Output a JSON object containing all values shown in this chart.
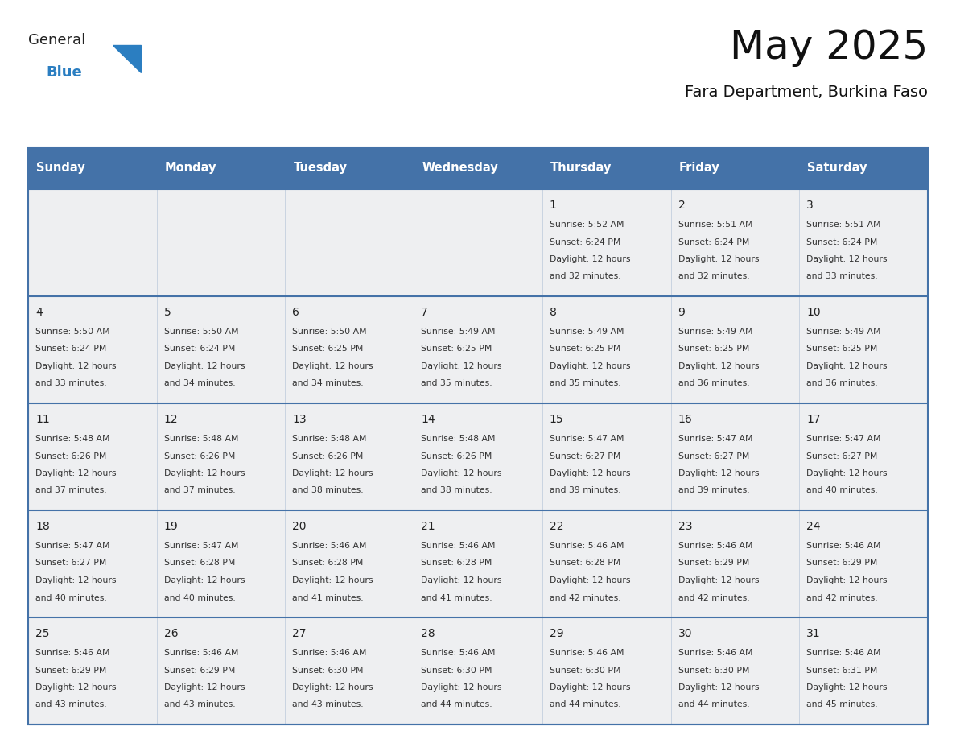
{
  "title": "May 2025",
  "subtitle": "Fara Department, Burkina Faso",
  "days_of_week": [
    "Sunday",
    "Monday",
    "Tuesday",
    "Wednesday",
    "Thursday",
    "Friday",
    "Saturday"
  ],
  "header_bg_color": "#4472a8",
  "header_text_color": "#ffffff",
  "cell_bg_color": "#eeeff1",
  "cell_bg_white": "#ffffff",
  "cell_border_color": "#4472a8",
  "row_divider_color": "#4472a8",
  "day_number_color": "#222222",
  "text_color": "#333333",
  "title_color": "#111111",
  "subtitle_color": "#111111",
  "logo_general_color": "#222222",
  "logo_blue_color": "#2b7ec1",
  "calendar": [
    [
      null,
      null,
      null,
      null,
      {
        "day": 1,
        "sunrise": "5:52 AM",
        "sunset": "6:24 PM",
        "daylight_hours": "12 hours",
        "daylight_min": "and 32 minutes."
      },
      {
        "day": 2,
        "sunrise": "5:51 AM",
        "sunset": "6:24 PM",
        "daylight_hours": "12 hours",
        "daylight_min": "and 32 minutes."
      },
      {
        "day": 3,
        "sunrise": "5:51 AM",
        "sunset": "6:24 PM",
        "daylight_hours": "12 hours",
        "daylight_min": "and 33 minutes."
      }
    ],
    [
      {
        "day": 4,
        "sunrise": "5:50 AM",
        "sunset": "6:24 PM",
        "daylight_hours": "12 hours",
        "daylight_min": "and 33 minutes."
      },
      {
        "day": 5,
        "sunrise": "5:50 AM",
        "sunset": "6:24 PM",
        "daylight_hours": "12 hours",
        "daylight_min": "and 34 minutes."
      },
      {
        "day": 6,
        "sunrise": "5:50 AM",
        "sunset": "6:25 PM",
        "daylight_hours": "12 hours",
        "daylight_min": "and 34 minutes."
      },
      {
        "day": 7,
        "sunrise": "5:49 AM",
        "sunset": "6:25 PM",
        "daylight_hours": "12 hours",
        "daylight_min": "and 35 minutes."
      },
      {
        "day": 8,
        "sunrise": "5:49 AM",
        "sunset": "6:25 PM",
        "daylight_hours": "12 hours",
        "daylight_min": "and 35 minutes."
      },
      {
        "day": 9,
        "sunrise": "5:49 AM",
        "sunset": "6:25 PM",
        "daylight_hours": "12 hours",
        "daylight_min": "and 36 minutes."
      },
      {
        "day": 10,
        "sunrise": "5:49 AM",
        "sunset": "6:25 PM",
        "daylight_hours": "12 hours",
        "daylight_min": "and 36 minutes."
      }
    ],
    [
      {
        "day": 11,
        "sunrise": "5:48 AM",
        "sunset": "6:26 PM",
        "daylight_hours": "12 hours",
        "daylight_min": "and 37 minutes."
      },
      {
        "day": 12,
        "sunrise": "5:48 AM",
        "sunset": "6:26 PM",
        "daylight_hours": "12 hours",
        "daylight_min": "and 37 minutes."
      },
      {
        "day": 13,
        "sunrise": "5:48 AM",
        "sunset": "6:26 PM",
        "daylight_hours": "12 hours",
        "daylight_min": "and 38 minutes."
      },
      {
        "day": 14,
        "sunrise": "5:48 AM",
        "sunset": "6:26 PM",
        "daylight_hours": "12 hours",
        "daylight_min": "and 38 minutes."
      },
      {
        "day": 15,
        "sunrise": "5:47 AM",
        "sunset": "6:27 PM",
        "daylight_hours": "12 hours",
        "daylight_min": "and 39 minutes."
      },
      {
        "day": 16,
        "sunrise": "5:47 AM",
        "sunset": "6:27 PM",
        "daylight_hours": "12 hours",
        "daylight_min": "and 39 minutes."
      },
      {
        "day": 17,
        "sunrise": "5:47 AM",
        "sunset": "6:27 PM",
        "daylight_hours": "12 hours",
        "daylight_min": "and 40 minutes."
      }
    ],
    [
      {
        "day": 18,
        "sunrise": "5:47 AM",
        "sunset": "6:27 PM",
        "daylight_hours": "12 hours",
        "daylight_min": "and 40 minutes."
      },
      {
        "day": 19,
        "sunrise": "5:47 AM",
        "sunset": "6:28 PM",
        "daylight_hours": "12 hours",
        "daylight_min": "and 40 minutes."
      },
      {
        "day": 20,
        "sunrise": "5:46 AM",
        "sunset": "6:28 PM",
        "daylight_hours": "12 hours",
        "daylight_min": "and 41 minutes."
      },
      {
        "day": 21,
        "sunrise": "5:46 AM",
        "sunset": "6:28 PM",
        "daylight_hours": "12 hours",
        "daylight_min": "and 41 minutes."
      },
      {
        "day": 22,
        "sunrise": "5:46 AM",
        "sunset": "6:28 PM",
        "daylight_hours": "12 hours",
        "daylight_min": "and 42 minutes."
      },
      {
        "day": 23,
        "sunrise": "5:46 AM",
        "sunset": "6:29 PM",
        "daylight_hours": "12 hours",
        "daylight_min": "and 42 minutes."
      },
      {
        "day": 24,
        "sunrise": "5:46 AM",
        "sunset": "6:29 PM",
        "daylight_hours": "12 hours",
        "daylight_min": "and 42 minutes."
      }
    ],
    [
      {
        "day": 25,
        "sunrise": "5:46 AM",
        "sunset": "6:29 PM",
        "daylight_hours": "12 hours",
        "daylight_min": "and 43 minutes."
      },
      {
        "day": 26,
        "sunrise": "5:46 AM",
        "sunset": "6:29 PM",
        "daylight_hours": "12 hours",
        "daylight_min": "and 43 minutes."
      },
      {
        "day": 27,
        "sunrise": "5:46 AM",
        "sunset": "6:30 PM",
        "daylight_hours": "12 hours",
        "daylight_min": "and 43 minutes."
      },
      {
        "day": 28,
        "sunrise": "5:46 AM",
        "sunset": "6:30 PM",
        "daylight_hours": "12 hours",
        "daylight_min": "and 44 minutes."
      },
      {
        "day": 29,
        "sunrise": "5:46 AM",
        "sunset": "6:30 PM",
        "daylight_hours": "12 hours",
        "daylight_min": "and 44 minutes."
      },
      {
        "day": 30,
        "sunrise": "5:46 AM",
        "sunset": "6:30 PM",
        "daylight_hours": "12 hours",
        "daylight_min": "and 44 minutes."
      },
      {
        "day": 31,
        "sunrise": "5:46 AM",
        "sunset": "6:31 PM",
        "daylight_hours": "12 hours",
        "daylight_min": "and 45 minutes."
      }
    ]
  ]
}
